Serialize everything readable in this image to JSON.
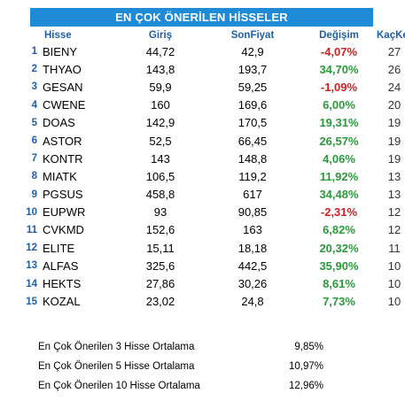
{
  "title": "EN ÇOK ÖNERİLEN HİSSELER",
  "columns": {
    "hisse": "Hisse",
    "giris": "Giriş",
    "sonfiyat": "SonFiyat",
    "degisim": "Değişim",
    "kackere": "KaçKere"
  },
  "rows": [
    {
      "rank": "1",
      "hisse": "BIENY",
      "giris": "44,72",
      "son": "42,9",
      "degisim": "-4,07%",
      "kac": "27",
      "positive": false
    },
    {
      "rank": "2",
      "hisse": "THYAO",
      "giris": "143,8",
      "son": "193,7",
      "degisim": "34,70%",
      "kac": "26",
      "positive": true
    },
    {
      "rank": "3",
      "hisse": "GESAN",
      "giris": "59,9",
      "son": "59,25",
      "degisim": "-1,09%",
      "kac": "24",
      "positive": false
    },
    {
      "rank": "4",
      "hisse": "CWENE",
      "giris": "160",
      "son": "169,6",
      "degisim": "6,00%",
      "kac": "20",
      "positive": true
    },
    {
      "rank": "5",
      "hisse": "DOAS",
      "giris": "142,9",
      "son": "170,5",
      "degisim": "19,31%",
      "kac": "19",
      "positive": true
    },
    {
      "rank": "6",
      "hisse": "ASTOR",
      "giris": "52,5",
      "son": "66,45",
      "degisim": "26,57%",
      "kac": "19",
      "positive": true
    },
    {
      "rank": "7",
      "hisse": "KONTR",
      "giris": "143",
      "son": "148,8",
      "degisim": "4,06%",
      "kac": "19",
      "positive": true
    },
    {
      "rank": "8",
      "hisse": "MIATK",
      "giris": "106,5",
      "son": "119,2",
      "degisim": "11,92%",
      "kac": "13",
      "positive": true
    },
    {
      "rank": "9",
      "hisse": "PGSUS",
      "giris": "458,8",
      "son": "617",
      "degisim": "34,48%",
      "kac": "13",
      "positive": true
    },
    {
      "rank": "10",
      "hisse": "EUPWR",
      "giris": "93",
      "son": "90,85",
      "degisim": "-2,31%",
      "kac": "12",
      "positive": false
    },
    {
      "rank": "11",
      "hisse": "CVKMD",
      "giris": "152,6",
      "son": "163",
      "degisim": "6,82%",
      "kac": "12",
      "positive": true
    },
    {
      "rank": "12",
      "hisse": "ELITE",
      "giris": "15,11",
      "son": "18,18",
      "degisim": "20,32%",
      "kac": "11",
      "positive": true
    },
    {
      "rank": "13",
      "hisse": "ALFAS",
      "giris": "325,6",
      "son": "442,5",
      "degisim": "35,90%",
      "kac": "10",
      "positive": true
    },
    {
      "rank": "14",
      "hisse": "HEKTS",
      "giris": "27,86",
      "son": "30,26",
      "degisim": "8,61%",
      "kac": "10",
      "positive": true
    },
    {
      "rank": "15",
      "hisse": "KOZAL",
      "giris": "23,02",
      "son": "24,8",
      "degisim": "7,73%",
      "kac": "10",
      "positive": true
    }
  ],
  "summary": [
    {
      "label": "En Çok Önerilen 3 Hisse Ortalama",
      "value": "9,85%"
    },
    {
      "label": "En Çok Önerilen 5 Hisse Ortalama",
      "value": "10,97%"
    },
    {
      "label": "En Çok Önerilen 10 Hisse Ortalama",
      "value": "12,96%"
    }
  ],
  "colors": {
    "header_bg": "#1f8bd6",
    "header_text": "#1f5fa8",
    "positive": "#2a9a3a",
    "negative": "#cc2222"
  }
}
